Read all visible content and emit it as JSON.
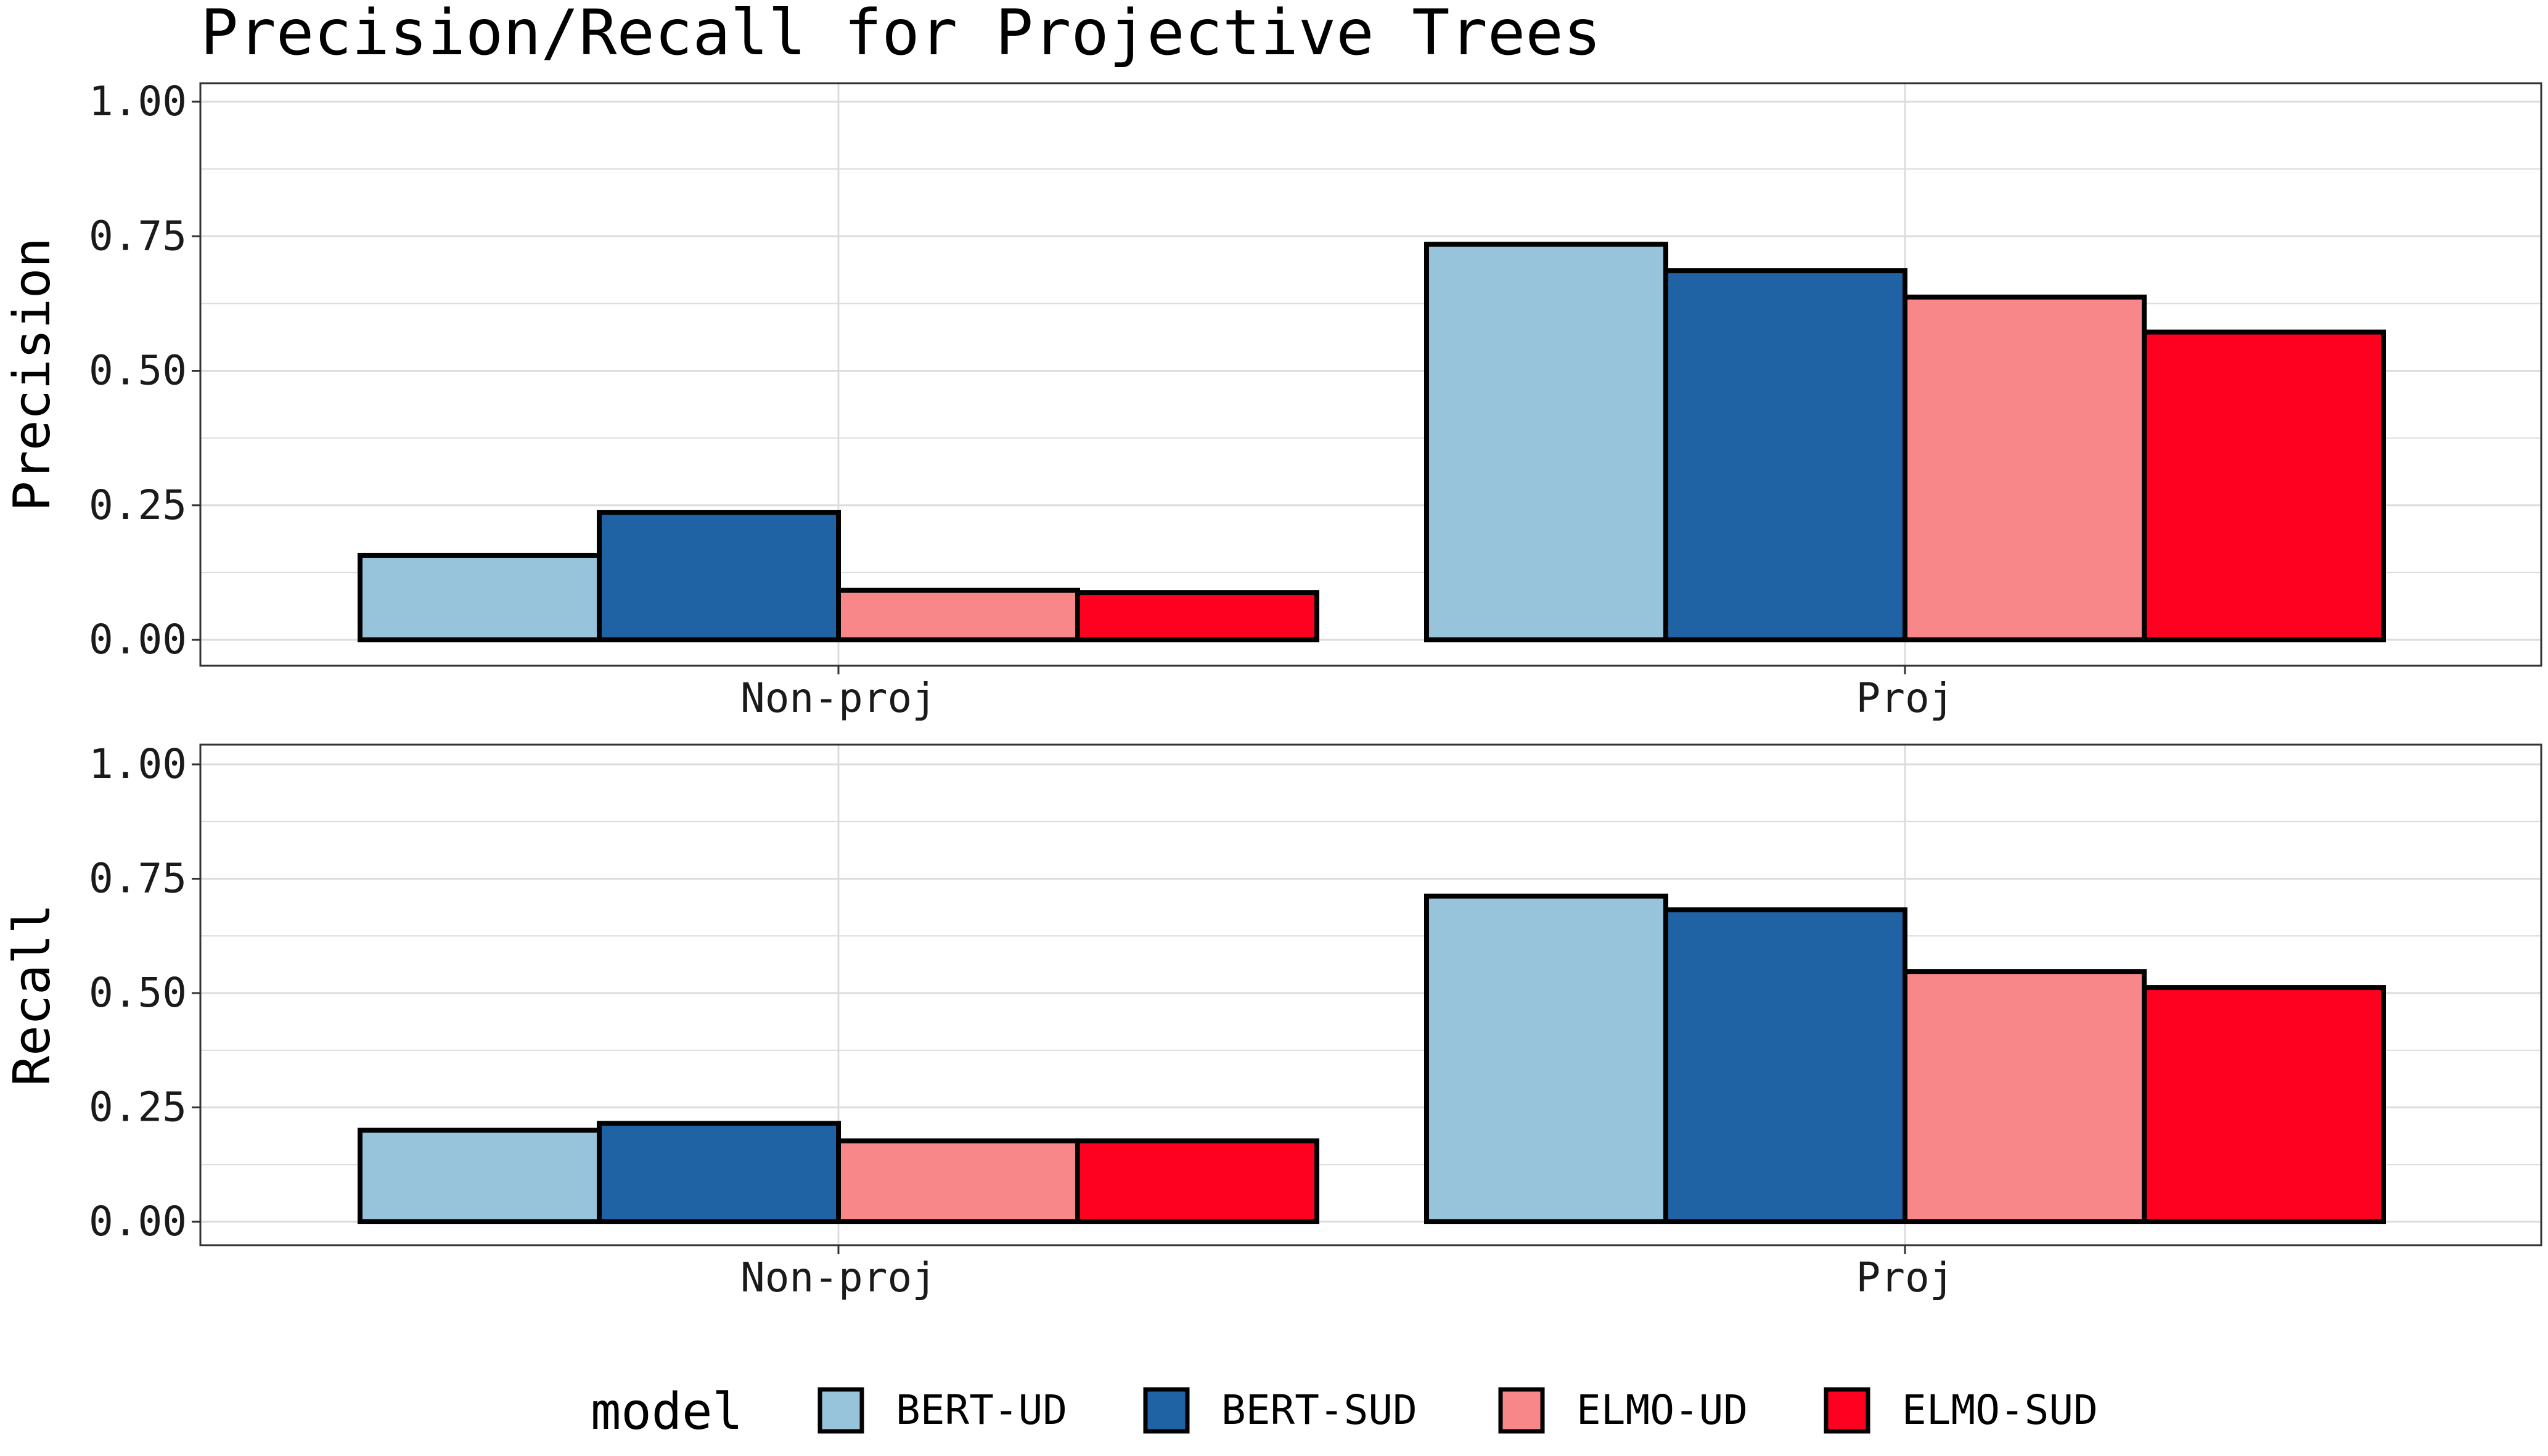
{
  "chart_data": {
    "type": "bar",
    "title": "Precision/Recall for Projective Trees",
    "categories": [
      "Non-proj",
      "Proj"
    ],
    "legend": {
      "title": "model",
      "position": "bottom",
      "entries": [
        "BERT-UD",
        "BERT-SUD",
        "ELMO-UD",
        "ELMO-SUD"
      ]
    },
    "colors": {
      "BERT-UD": "#97c3db",
      "BERT-SUD": "#1f63a4",
      "ELMO-UD": "#f78788",
      "ELMO-SUD": "#fe0120",
      "bar_outline": "#000000",
      "grid": "#dcdcdc",
      "panel_border": "#333333"
    },
    "grid": true,
    "ylim": [
      0,
      1
    ],
    "yticks": [
      "0.00",
      "0.25",
      "0.50",
      "0.75",
      "1.00"
    ],
    "panels": [
      {
        "ylabel": "Precision",
        "series": [
          {
            "name": "BERT-UD",
            "values": [
              0.157,
              0.735
            ]
          },
          {
            "name": "BERT-SUD",
            "values": [
              0.237,
              0.686
            ]
          },
          {
            "name": "ELMO-UD",
            "values": [
              0.092,
              0.637
            ]
          },
          {
            "name": "ELMO-SUD",
            "values": [
              0.088,
              0.572
            ]
          }
        ]
      },
      {
        "ylabel": "Recall",
        "series": [
          {
            "name": "BERT-UD",
            "values": [
              0.2,
              0.712
            ]
          },
          {
            "name": "BERT-SUD",
            "values": [
              0.215,
              0.682
            ]
          },
          {
            "name": "ELMO-UD",
            "values": [
              0.177,
              0.547
            ]
          },
          {
            "name": "ELMO-SUD",
            "values": [
              0.177,
              0.512
            ]
          }
        ]
      }
    ]
  }
}
